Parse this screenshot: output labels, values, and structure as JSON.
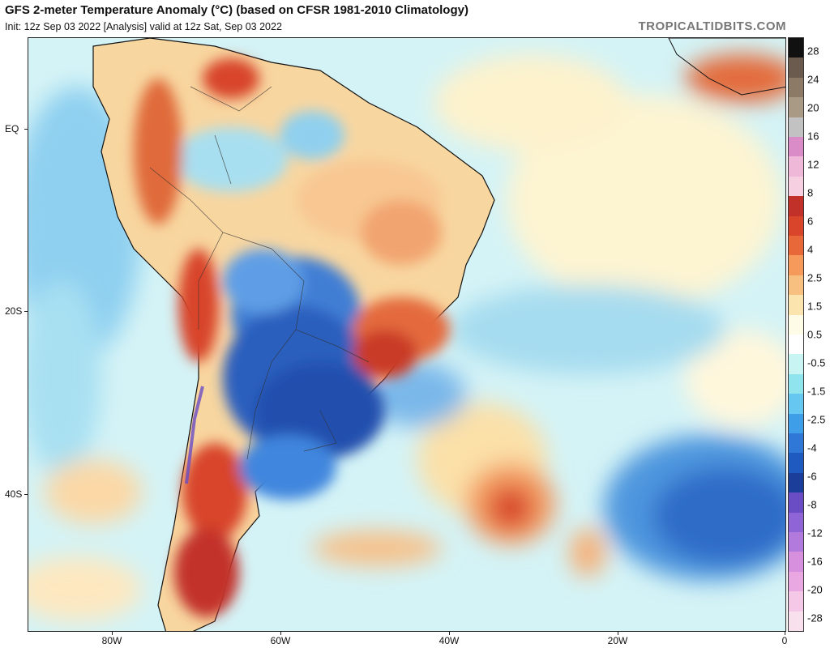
{
  "header": {
    "title": "GFS 2-meter Temperature Anomaly (°C) (based on CFSR 1981-2010 Climatology)",
    "subtitle": "Init: 12z Sep 03 2022   [Analysis]   valid at 12z Sat, Sep 03 2022",
    "brand": "TROPICALTIDBITS.COM"
  },
  "axes": {
    "lat_labels": [
      "EQ",
      "20S",
      "40S"
    ],
    "lon_labels": [
      "80W",
      "60W",
      "40W",
      "20W",
      "0"
    ]
  },
  "colorbar": {
    "labels": [
      "28",
      "24",
      "20",
      "16",
      "12",
      "8",
      "6",
      "4",
      "2.5",
      "1.5",
      "0.5",
      "-0.5",
      "-1.5",
      "-2.5",
      "-4",
      "-6",
      "-8",
      "-12",
      "-16",
      "-20",
      "-28"
    ],
    "colors": [
      "#111111",
      "#6b5a4e",
      "#8c7a66",
      "#a99a86",
      "#c2c2c2",
      "#d98cc8",
      "#f0b8d8",
      "#f6d0e0",
      "#c2302a",
      "#d8452a",
      "#e8683a",
      "#f59a5a",
      "#f8c080",
      "#fbe4ae",
      "#fefbe6",
      "#ffffff",
      "#c8f4f4",
      "#90e4ee",
      "#66c8f0",
      "#3f9ee8",
      "#2f78d8",
      "#1f5ac0",
      "#1a3e9a",
      "#6a4cc4",
      "#8e64d6",
      "#b27adc",
      "#d690de",
      "#eaa8e2",
      "#f4c8e6",
      "#f8e0ec"
    ],
    "tick_values": [
      28,
      24,
      20,
      16,
      12,
      8,
      6,
      4,
      2.5,
      1.5,
      0.5,
      -0.5,
      -1.5,
      -2.5,
      -4,
      -6,
      -8,
      -12,
      -16,
      -20,
      -28
    ]
  },
  "map": {
    "region": "South America and South Atlantic",
    "variable": "2-meter temperature anomaly",
    "units": "°C"
  }
}
